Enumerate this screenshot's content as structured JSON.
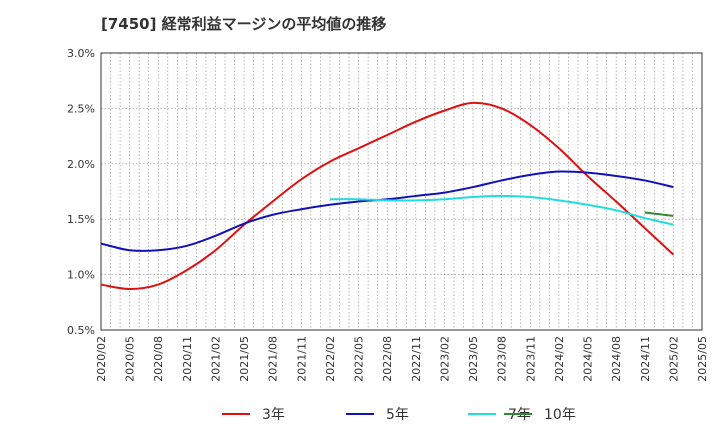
{
  "chart_data": {
    "type": "line",
    "title": "[7450]  経常利益マージンの平均値の推移",
    "xlabel": "",
    "ylabel": "",
    "ylim": [
      0.5,
      3.0
    ],
    "yticks": [
      "3.0%",
      "2.5%",
      "2.0%",
      "1.5%",
      "1.0%",
      "0.5%"
    ],
    "yticks_values": [
      3.0,
      2.5,
      2.0,
      1.5,
      1.0,
      0.5
    ],
    "x_ticks": [
      "2020/02",
      "2020/05",
      "2020/08",
      "2020/11",
      "2021/02",
      "2021/05",
      "2021/08",
      "2021/11",
      "2022/02",
      "2022/05",
      "2022/08",
      "2022/11",
      "2023/02",
      "2023/05",
      "2023/08",
      "2023/11",
      "2024/02",
      "2024/05",
      "2024/08",
      "2024/11",
      "2025/02",
      "2025/05"
    ],
    "grid": true,
    "legend_position": "bottom",
    "series": [
      {
        "name": "3年",
        "color": "#dd1111",
        "x": [
          "2020/02",
          "2020/05",
          "2020/08",
          "2020/11",
          "2021/02",
          "2021/05",
          "2021/08",
          "2021/11",
          "2022/02",
          "2022/05",
          "2022/08",
          "2022/11",
          "2023/02",
          "2023/05",
          "2023/08",
          "2023/11",
          "2024/02",
          "2024/05",
          "2024/08",
          "2024/11",
          "2025/02"
        ],
        "values": [
          0.91,
          0.87,
          0.91,
          1.04,
          1.22,
          1.45,
          1.66,
          1.86,
          2.02,
          2.14,
          2.26,
          2.38,
          2.48,
          2.55,
          2.5,
          2.35,
          2.14,
          1.89,
          1.66,
          1.42,
          1.18
        ]
      },
      {
        "name": "5年",
        "color": "#1111bb",
        "x": [
          "2020/02",
          "2020/05",
          "2020/08",
          "2020/11",
          "2021/02",
          "2021/05",
          "2021/08",
          "2021/11",
          "2022/02",
          "2022/05",
          "2022/08",
          "2022/11",
          "2023/02",
          "2023/05",
          "2023/08",
          "2023/11",
          "2024/02",
          "2024/05",
          "2024/08",
          "2024/11",
          "2025/02"
        ],
        "values": [
          1.28,
          1.22,
          1.22,
          1.26,
          1.35,
          1.46,
          1.54,
          1.59,
          1.63,
          1.66,
          1.68,
          1.71,
          1.74,
          1.79,
          1.85,
          1.9,
          1.93,
          1.92,
          1.89,
          1.85,
          1.79
        ]
      },
      {
        "name": "7年",
        "color": "#22dddd",
        "x": [
          "2022/02",
          "2022/05",
          "2022/08",
          "2022/11",
          "2023/02",
          "2023/05",
          "2023/08",
          "2023/11",
          "2024/02",
          "2024/05",
          "2024/08",
          "2024/11",
          "2025/02"
        ],
        "values": [
          1.68,
          1.68,
          1.67,
          1.67,
          1.68,
          1.7,
          1.71,
          1.7,
          1.67,
          1.63,
          1.58,
          1.51,
          1.45
        ]
      },
      {
        "name": "10年",
        "color": "#338833",
        "x": [
          "2024/11",
          "2025/02"
        ],
        "values": [
          1.56,
          1.53
        ]
      }
    ]
  }
}
